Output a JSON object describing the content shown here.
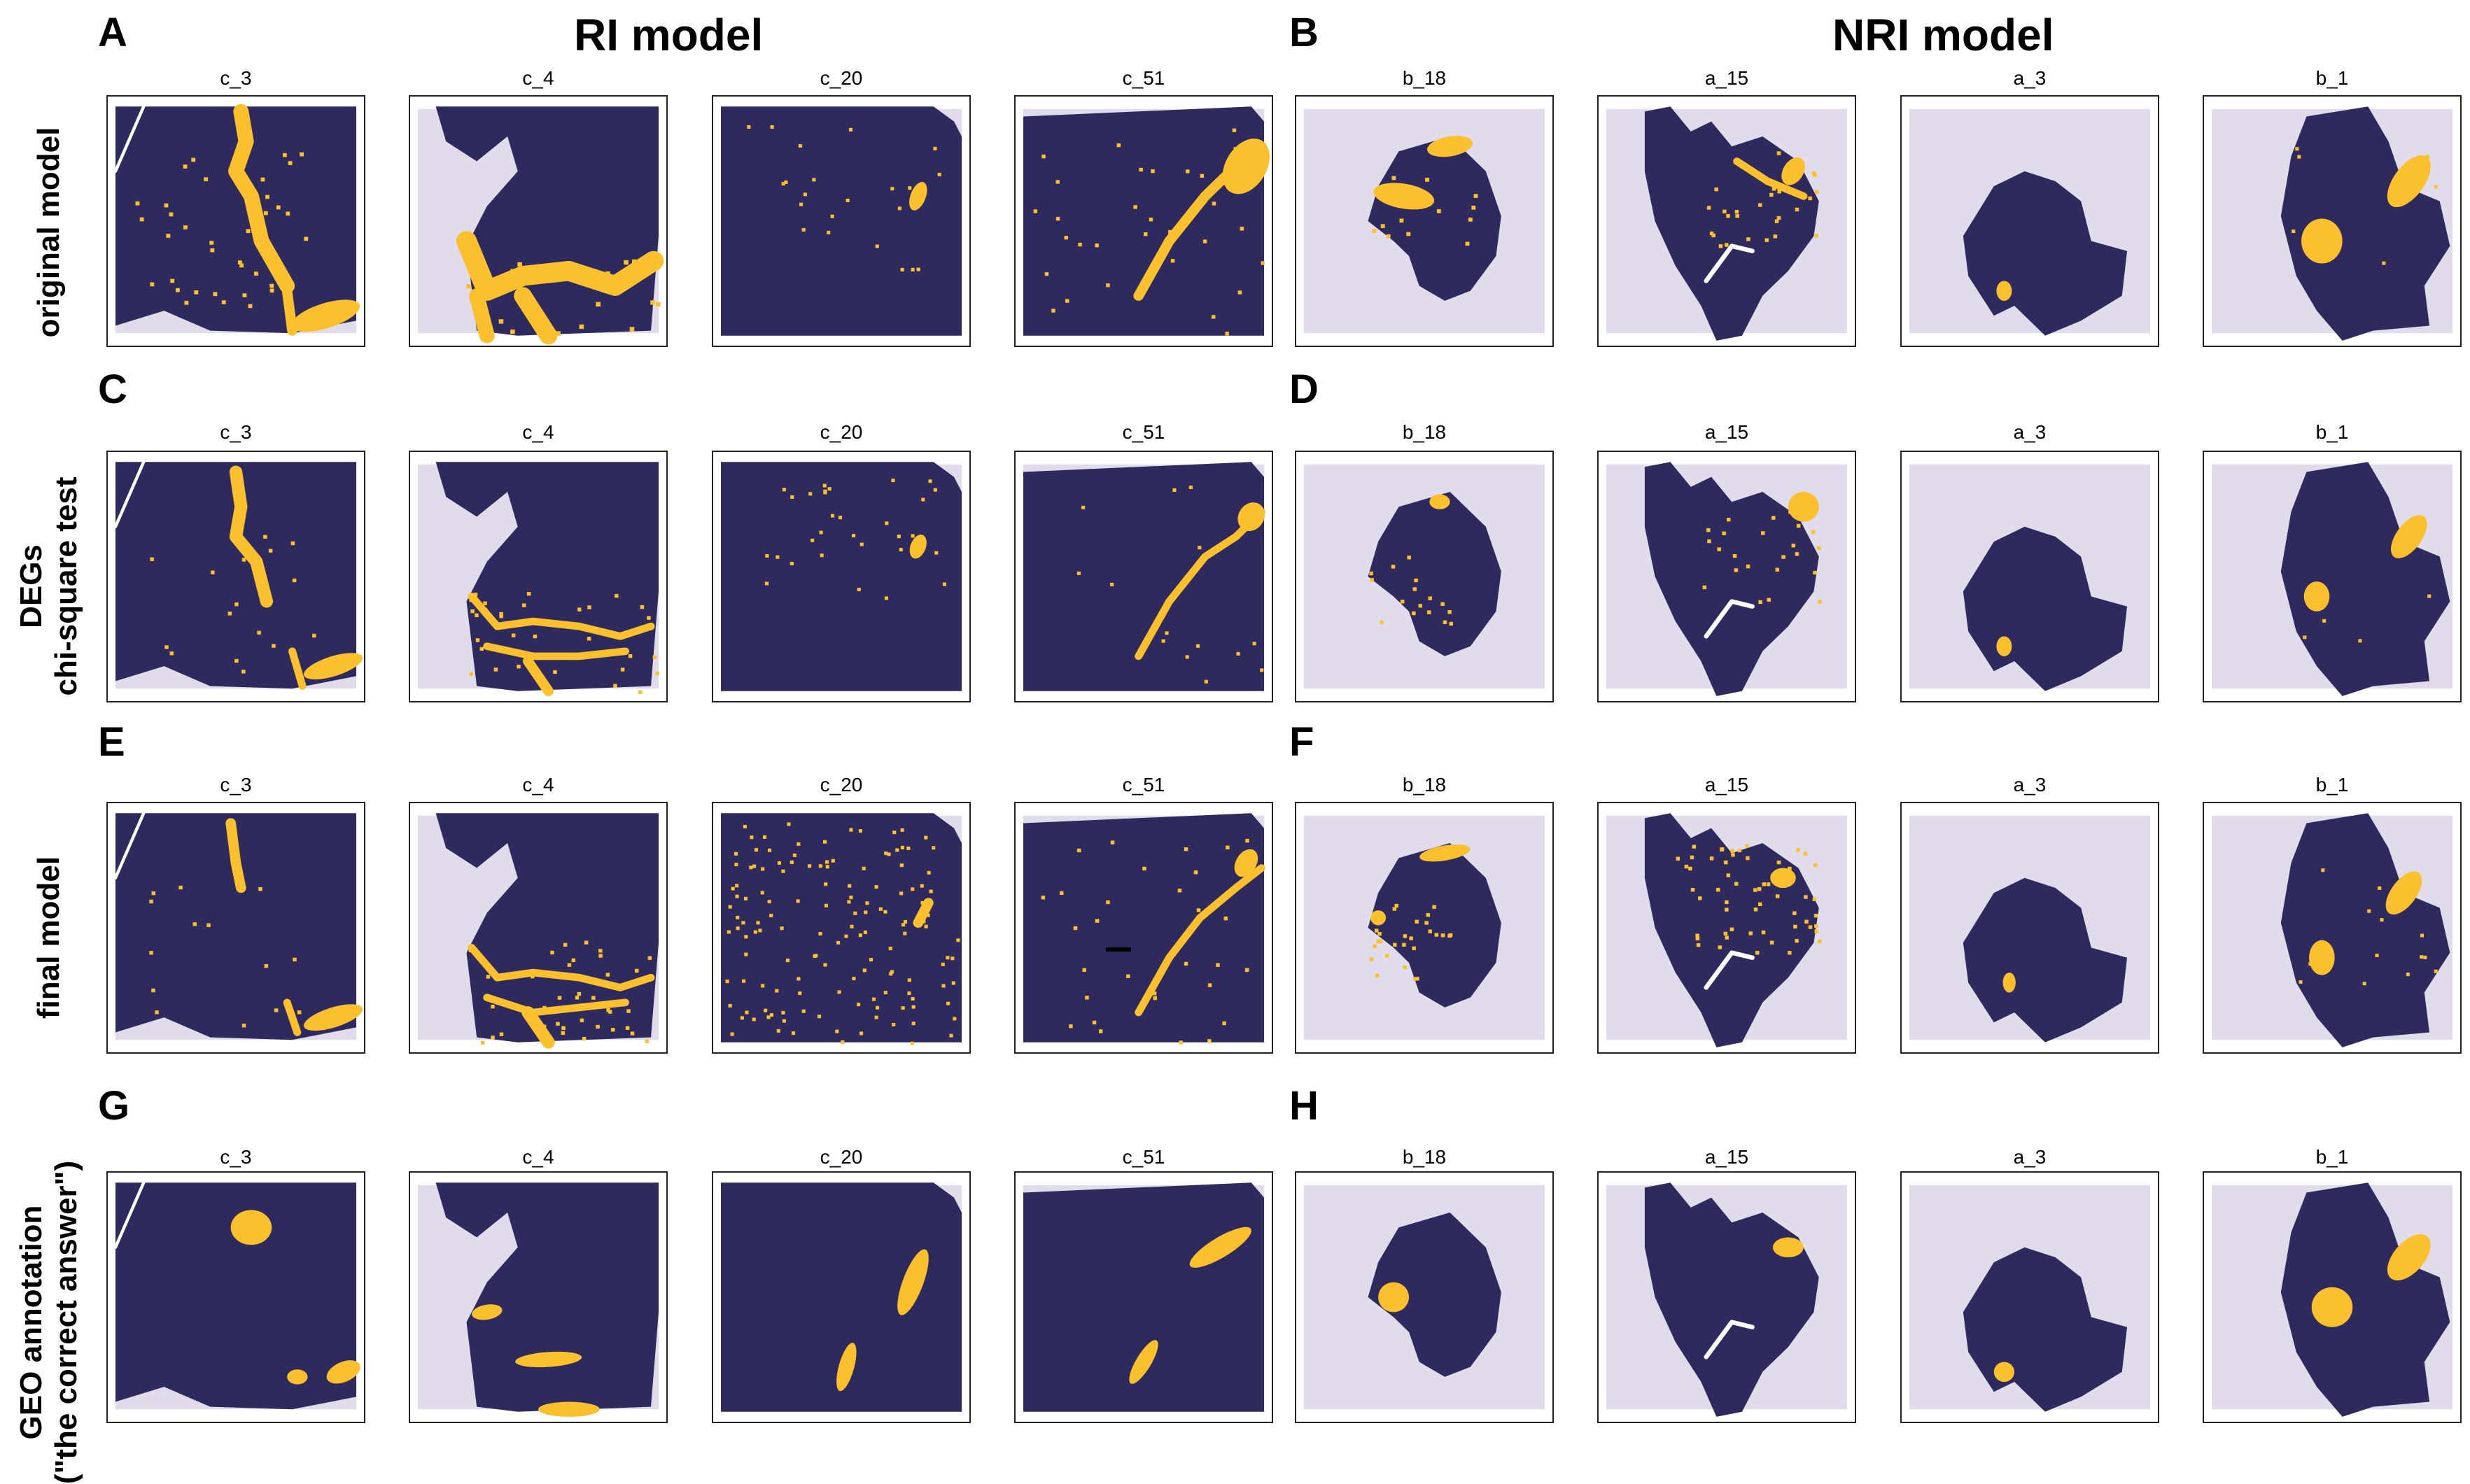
{
  "figure": {
    "left_group_title": "RI model",
    "right_group_title": "NRI model",
    "rows": [
      {
        "label_lines": [
          "original model"
        ],
        "left_letter": "A",
        "right_letter": "B"
      },
      {
        "label_lines": [
          "DEGs",
          "chi-square test"
        ],
        "left_letter": "C",
        "right_letter": "D"
      },
      {
        "label_lines": [
          "final model"
        ],
        "left_letter": "E",
        "right_letter": "F"
      },
      {
        "label_lines": [
          "GEO annotation",
          "(\"the correct answer\")"
        ],
        "left_letter": "G",
        "right_letter": "H"
      }
    ],
    "left_samples": [
      "c_3",
      "c_4",
      "c_20",
      "c_51"
    ],
    "right_samples": [
      "b_18",
      "a_15",
      "a_3",
      "b_1"
    ]
  },
  "colors": {
    "tissue": "#2f2a5e",
    "background_spot": "#e1dcec",
    "highlight": "#fbc02d",
    "frame": "#222222"
  }
}
